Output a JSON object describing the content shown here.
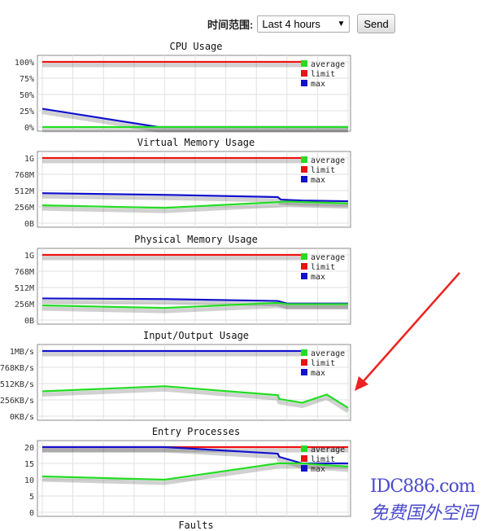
{
  "toolbar": {
    "range_label": "时间范围:",
    "range_value": "Last 4 hours",
    "send_label": "Send"
  },
  "legend": [
    {
      "name": "average",
      "color": "#22dd22"
    },
    {
      "name": "limit",
      "color": "#ee1111"
    },
    {
      "name": "max",
      "color": "#1111cc"
    }
  ],
  "chart_data": [
    {
      "type": "line",
      "title": "CPU Usage",
      "yticks": [
        "0%",
        "25%",
        "50%",
        "75%",
        "100%"
      ],
      "ylim": [
        0,
        100
      ],
      "xlim": [
        0,
        10
      ],
      "grid": true,
      "legend": "top-right",
      "series": [
        {
          "name": "average",
          "x": [
            0,
            10
          ],
          "y": [
            0,
            0
          ]
        },
        {
          "name": "limit",
          "x": [
            0,
            8.5
          ],
          "y": [
            100,
            100
          ]
        },
        {
          "name": "max",
          "x": [
            0,
            3.8,
            10
          ],
          "y": [
            28,
            0,
            0
          ]
        }
      ]
    },
    {
      "type": "line",
      "title": "Virtual Memory Usage",
      "yticks": [
        "0B",
        "256M",
        "512M",
        "768M",
        "1G"
      ],
      "ylim": [
        0,
        1024
      ],
      "xlim": [
        0,
        10
      ],
      "grid": true,
      "legend": "top-right",
      "series": [
        {
          "name": "average",
          "x": [
            0,
            4,
            7.7,
            8,
            10
          ],
          "y": [
            280,
            240,
            330,
            340,
            310
          ]
        },
        {
          "name": "limit",
          "x": [
            0,
            8.5
          ],
          "y": [
            1024,
            1024
          ]
        },
        {
          "name": "max",
          "x": [
            0,
            4,
            7.7,
            7.8,
            8.5,
            10
          ],
          "y": [
            470,
            445,
            410,
            370,
            355,
            345
          ]
        }
      ]
    },
    {
      "type": "line",
      "title": "Physical Memory Usage",
      "yticks": [
        "0B",
        "256M",
        "512M",
        "768M",
        "1G"
      ],
      "ylim": [
        0,
        1024
      ],
      "xlim": [
        0,
        10
      ],
      "grid": true,
      "legend": "top-right",
      "series": [
        {
          "name": "average",
          "x": [
            0,
            4,
            7.7,
            8,
            10
          ],
          "y": [
            230,
            190,
            270,
            250,
            250
          ]
        },
        {
          "name": "limit",
          "x": [
            0,
            8.5
          ],
          "y": [
            1024,
            1024
          ]
        },
        {
          "name": "max",
          "x": [
            0,
            4,
            7.7,
            8,
            10
          ],
          "y": [
            340,
            330,
            300,
            260,
            260
          ]
        }
      ]
    },
    {
      "type": "line",
      "title": "Input/Output Usage",
      "yticks": [
        "0KB/s",
        "256KB/s",
        "512KB/s",
        "768KB/s",
        "1MB/s"
      ],
      "ylim": [
        0,
        1024
      ],
      "xlim": [
        0,
        10
      ],
      "grid": true,
      "legend": "top-right",
      "series": [
        {
          "name": "average",
          "x": [
            0,
            4,
            7.7,
            7.75,
            8.5,
            9.3,
            10
          ],
          "y": [
            390,
            470,
            330,
            270,
            210,
            340,
            130
          ]
        },
        {
          "name": "limit",
          "x": [],
          "y": []
        },
        {
          "name": "max",
          "x": [
            0,
            8.5
          ],
          "y": [
            1024,
            1024
          ]
        }
      ]
    },
    {
      "type": "line",
      "title": "Entry Processes",
      "yticks": [
        "0",
        "5",
        "10",
        "15",
        "20"
      ],
      "ylim": [
        0,
        20
      ],
      "xlim": [
        0,
        10
      ],
      "grid": true,
      "legend": "top-right",
      "series": [
        {
          "name": "average",
          "x": [
            0,
            4,
            7.7,
            8.5,
            10
          ],
          "y": [
            11,
            10,
            15,
            15,
            14
          ]
        },
        {
          "name": "limit",
          "x": [
            0,
            10
          ],
          "y": [
            20,
            20
          ]
        },
        {
          "name": "max",
          "x": [
            0,
            4,
            7.7,
            7.75,
            8.5,
            10
          ],
          "y": [
            20,
            20,
            18,
            17,
            15,
            15
          ]
        }
      ]
    }
  ],
  "next_title": "Faults",
  "watermark": {
    "line1": "IDC886.com",
    "line2": "免费国外空间"
  }
}
